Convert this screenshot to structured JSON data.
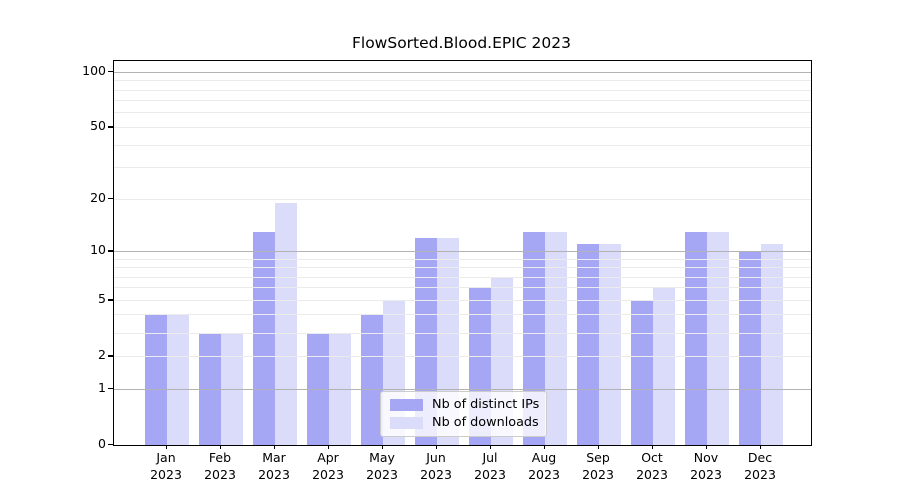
{
  "chart_data": {
    "type": "bar",
    "title": "FlowSorted.Blood.EPIC 2023",
    "categories": [
      "Jan",
      "Feb",
      "Mar",
      "Apr",
      "May",
      "Jun",
      "Jul",
      "Aug",
      "Sep",
      "Oct",
      "Nov",
      "Dec"
    ],
    "x_axis": {
      "tick_label_line2": "2023"
    },
    "series": [
      {
        "name": "Nb of distinct IPs",
        "color": "#a5a6f4",
        "values": [
          4,
          3,
          13,
          3,
          4,
          12,
          6,
          13,
          11,
          5,
          13,
          10
        ]
      },
      {
        "name": "Nb of downloads",
        "color": "#dbdcfa",
        "values": [
          4,
          3,
          19,
          3,
          5,
          12,
          7,
          13,
          11,
          6,
          13,
          11
        ]
      }
    ],
    "y_axis": {
      "scale": "log10(x+1)",
      "ticks": [
        100,
        50,
        20,
        10,
        5,
        2,
        1,
        0
      ],
      "major_gridlines": [
        1,
        10,
        100
      ],
      "minor_gridlines": [
        2,
        3,
        4,
        5,
        6,
        7,
        8,
        9,
        20,
        30,
        40,
        50,
        60,
        70,
        80,
        90
      ],
      "range_min": 0,
      "range_max": 115
    },
    "legend": {
      "position": "lower-center"
    },
    "style": {
      "bar_color_ips": "#a5a6f4",
      "bar_color_downloads": "#dbdcfa",
      "major_grid_color": "#b3b3b3",
      "minor_grid_color": "#ebebeb",
      "spine_color": "#000000",
      "text_color": "#000000"
    }
  }
}
